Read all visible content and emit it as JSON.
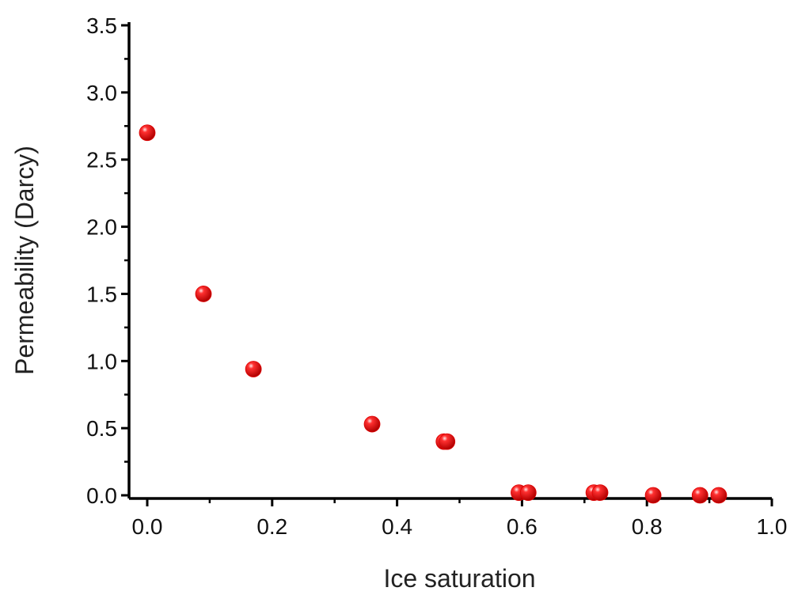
{
  "chart_data": {
    "type": "scatter",
    "title": "",
    "xlabel": "Ice saturation",
    "ylabel": "Permeability (Darcy)",
    "xlim": [
      -0.02,
      1.0
    ],
    "ylim": [
      0.0,
      3.5
    ],
    "x_ticks": [
      0.0,
      0.2,
      0.4,
      0.6,
      0.8,
      1.0
    ],
    "x_tick_labels": [
      "0.0",
      "0.2",
      "0.4",
      "0.6",
      "0.8",
      "1.0"
    ],
    "y_ticks": [
      0.0,
      0.5,
      1.0,
      1.5,
      2.0,
      2.5,
      3.0,
      3.5
    ],
    "y_tick_labels": [
      "0.0",
      "0.5",
      "1.0",
      "1.5",
      "2.0",
      "2.5",
      "3.0",
      "3.5"
    ],
    "grid": false,
    "legend": "none",
    "marker_color": "#e00000",
    "series": [
      {
        "x": [
          0.0,
          0.09,
          0.17,
          0.36,
          0.475,
          0.48,
          0.595,
          0.61,
          0.715,
          0.725,
          0.81,
          0.885,
          0.915
        ],
        "y": [
          2.7,
          1.5,
          0.94,
          0.53,
          0.4,
          0.4,
          0.02,
          0.02,
          0.02,
          0.02,
          0.0,
          0.0,
          0.0
        ]
      }
    ]
  }
}
